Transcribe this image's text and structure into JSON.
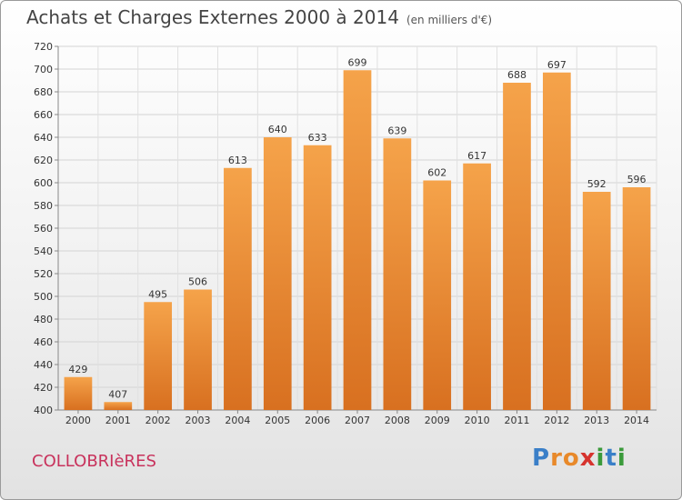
{
  "header": {
    "title": "Achats et Charges Externes 2000 à 2014",
    "subtitle": "(en milliers d'€)"
  },
  "footer": {
    "place": "COLLOBRIèRES",
    "logo_letters": [
      "P",
      "r",
      "o",
      "x",
      "i",
      "t",
      "i"
    ]
  },
  "colors": {
    "bar_light": "#f5a34a",
    "bar_dark": "#d87020",
    "place": "#c8325c",
    "logo": [
      "#3a7fc8",
      "#e8892a",
      "#e8892a",
      "#d6332e",
      "#3a9a3a",
      "#3a7fc8",
      "#3a9a3a"
    ]
  },
  "chart_data": {
    "type": "bar",
    "categories": [
      "2000",
      "2001",
      "2002",
      "2003",
      "2004",
      "2005",
      "2006",
      "2007",
      "2008",
      "2009",
      "2010",
      "2011",
      "2012",
      "2013",
      "2014"
    ],
    "values": [
      429,
      407,
      495,
      506,
      613,
      640,
      633,
      699,
      639,
      602,
      617,
      688,
      697,
      592,
      596
    ],
    "ylim": [
      400,
      720
    ],
    "ytick_step": 20,
    "grid": true
  }
}
